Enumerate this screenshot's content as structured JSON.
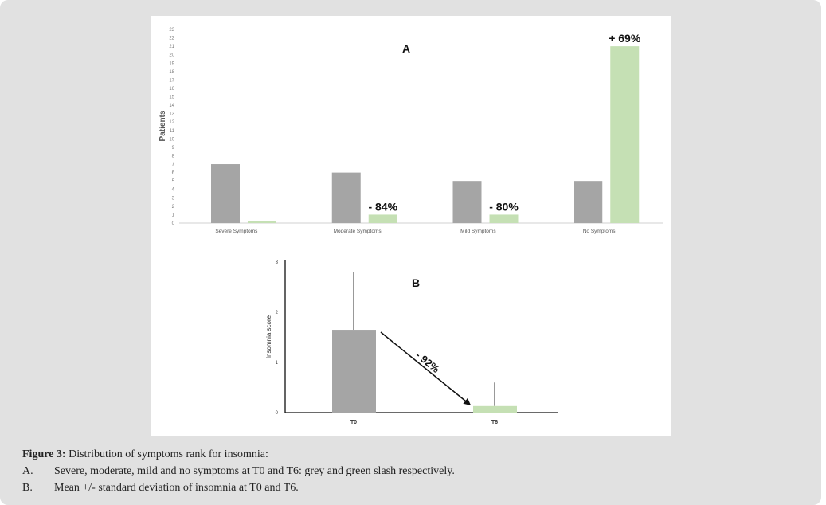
{
  "chart_data": [
    {
      "type": "bar",
      "title": "A",
      "ylabel": "Patients",
      "xlabel": "",
      "ylim": [
        0,
        23
      ],
      "yticks": [
        "0",
        "1",
        "2",
        "3",
        "4",
        "5",
        "6",
        "7",
        "8",
        "9",
        "10",
        "11",
        "12",
        "13",
        "14",
        "15",
        "16",
        "17",
        "18",
        "19",
        "20",
        "21",
        "22",
        "23"
      ],
      "categories": [
        "Severe Symptoms",
        "Moderate Symptoms",
        "Mild Symptoms",
        "No Symptoms"
      ],
      "series": [
        {
          "name": "T0",
          "color": "#a5a5a5",
          "values": [
            7,
            6,
            5,
            5
          ]
        },
        {
          "name": "T6",
          "color": "#c5e0b4",
          "values": [
            0.2,
            1,
            1,
            21
          ]
        }
      ],
      "annotations": [
        "",
        "- 84%",
        "- 80%",
        "+ 69%"
      ],
      "grid": false
    },
    {
      "type": "bar",
      "title": "B",
      "ylabel": "Insomnia score",
      "ylim": [
        0,
        3
      ],
      "yticks": [
        "0",
        "1",
        "2",
        "3"
      ],
      "categories": [
        "T0",
        "T6"
      ],
      "values": [
        1.65,
        0.13
      ],
      "error_upper": [
        2.8,
        0.6
      ],
      "colors": [
        "#a5a5a5",
        "#c5e0b4"
      ],
      "arrow_label": "- 92%",
      "grid": false
    }
  ],
  "caption": {
    "label": "Figure 3:",
    "text": " Distribution of symptoms rank for insomnia:",
    "items": [
      {
        "marker": "A.",
        "text": "Severe, moderate, mild and no symptoms at T0 and T6: grey and green slash respectively."
      },
      {
        "marker": "B.",
        "text": "Mean +/- standard deviation of insomnia at T0 and T6."
      }
    ]
  }
}
